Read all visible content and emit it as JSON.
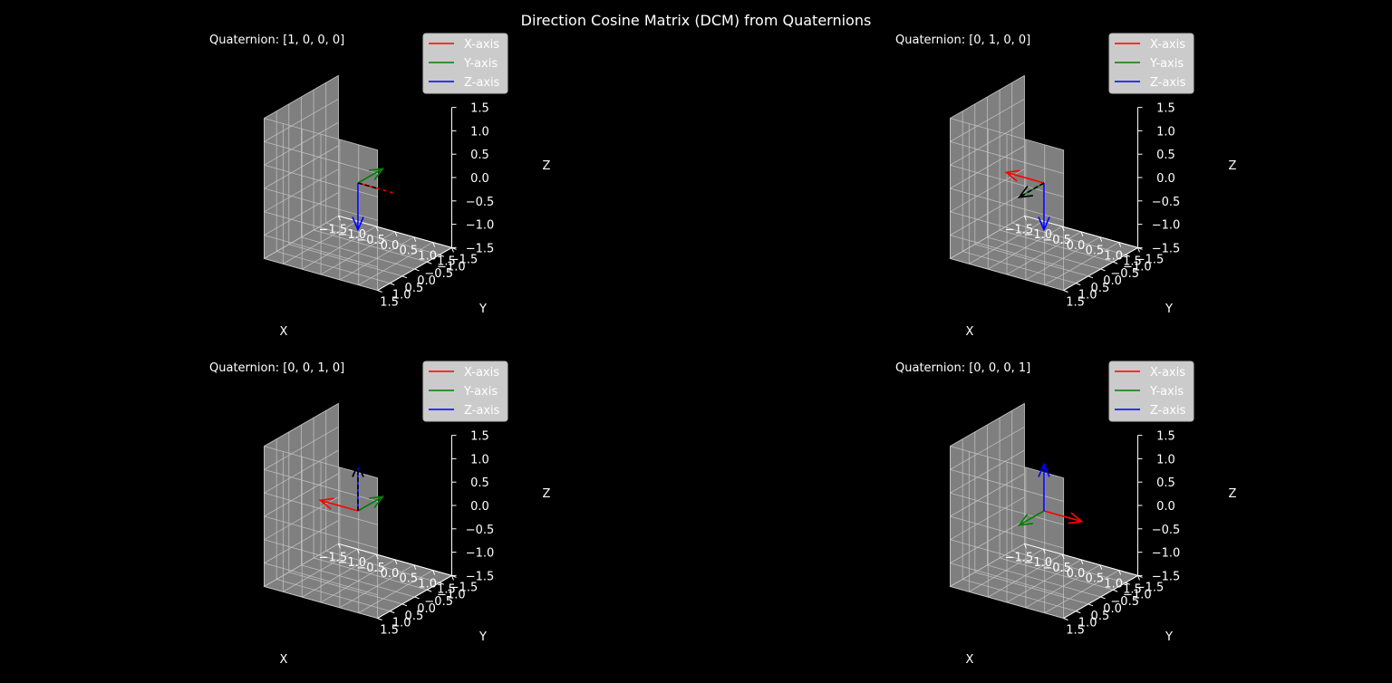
{
  "figure": {
    "title": "Direction Cosine Matrix (DCM) from Quaternions"
  },
  "colors": {
    "background": "#000000",
    "pane": "#7f7f7f",
    "grid": "#c8c8c8",
    "x_axis": "#ff0000",
    "y_axis": "#008000",
    "z_axis": "#0000ff",
    "dashed_overlay": "#000000",
    "legend_bg": "#d6d6d6",
    "text": "#ffffff"
  },
  "chart_data": [
    {
      "type": "3d-quiver",
      "title": "Quaternion: [1, 0, 0, 0]",
      "quaternion": [
        1,
        0,
        0,
        0
      ],
      "xlabel": "X",
      "ylabel": "Y",
      "zlabel": "Z",
      "xlim": [
        -1.5,
        1.5
      ],
      "ylim": [
        -1.5,
        1.5
      ],
      "zlim": [
        -1.5,
        1.5
      ],
      "ticks": [
        "−1.5",
        "−1.0",
        "−0.5",
        "0.0",
        "0.5",
        "1.0",
        "1.5"
      ],
      "grid": true,
      "legend": {
        "placement": "top-right",
        "entries": [
          "X-axis",
          "Y-axis",
          "Z-axis"
        ]
      },
      "series": [
        {
          "name": "X-axis",
          "color": "#ff0000",
          "vector": [
            1,
            0,
            0
          ]
        },
        {
          "name": "Y-axis",
          "color": "#008000",
          "vector": [
            0,
            -1,
            0
          ]
        },
        {
          "name": "Z-axis",
          "color": "#0000ff",
          "vector": [
            0,
            0,
            -1
          ]
        }
      ],
      "dashed_overlay": [
        1,
        0,
        0
      ]
    },
    {
      "type": "3d-quiver",
      "title": "Quaternion: [0, 1, 0, 0]",
      "quaternion": [
        0,
        1,
        0,
        0
      ],
      "xlabel": "X",
      "ylabel": "Y",
      "zlabel": "Z",
      "xlim": [
        -1.5,
        1.5
      ],
      "ylim": [
        -1.5,
        1.5
      ],
      "zlim": [
        -1.5,
        1.5
      ],
      "ticks": [
        "−1.5",
        "−1.0",
        "−0.5",
        "0.0",
        "0.5",
        "1.0",
        "1.5"
      ],
      "grid": true,
      "legend": {
        "placement": "top-right",
        "entries": [
          "X-axis",
          "Y-axis",
          "Z-axis"
        ]
      },
      "series": [
        {
          "name": "X-axis",
          "color": "#ff0000",
          "vector": [
            -1,
            0,
            0
          ]
        },
        {
          "name": "Y-axis",
          "color": "#008000",
          "vector": [
            0,
            1,
            0
          ]
        },
        {
          "name": "Z-axis",
          "color": "#0000ff",
          "vector": [
            0,
            0,
            -1
          ]
        }
      ],
      "dashed_overlay": [
        0,
        1,
        0
      ]
    },
    {
      "type": "3d-quiver",
      "title": "Quaternion: [0, 0, 1, 0]",
      "quaternion": [
        0,
        0,
        1,
        0
      ],
      "xlabel": "X",
      "ylabel": "Y",
      "zlabel": "Z",
      "xlim": [
        -1.5,
        1.5
      ],
      "ylim": [
        -1.5,
        1.5
      ],
      "zlim": [
        -1.5,
        1.5
      ],
      "ticks": [
        "−1.5",
        "−1.0",
        "−0.5",
        "0.0",
        "0.5",
        "1.0",
        "1.5"
      ],
      "grid": true,
      "legend": {
        "placement": "top-right",
        "entries": [
          "X-axis",
          "Y-axis",
          "Z-axis"
        ]
      },
      "series": [
        {
          "name": "X-axis",
          "color": "#ff0000",
          "vector": [
            -1,
            0,
            0
          ]
        },
        {
          "name": "Y-axis",
          "color": "#008000",
          "vector": [
            0,
            -1,
            0
          ]
        },
        {
          "name": "Z-axis",
          "color": "#0000ff",
          "vector": [
            0,
            0,
            1
          ]
        }
      ],
      "dashed_overlay": [
        0,
        0,
        1
      ]
    },
    {
      "type": "3d-quiver",
      "title": "Quaternion: [0, 0, 0, 1]",
      "quaternion": [
        0,
        0,
        0,
        1
      ],
      "xlabel": "X",
      "ylabel": "Y",
      "zlabel": "Z",
      "xlim": [
        -1.5,
        1.5
      ],
      "ylim": [
        -1.5,
        1.5
      ],
      "zlim": [
        -1.5,
        1.5
      ],
      "ticks": [
        "−1.5",
        "−1.0",
        "−0.5",
        "0.0",
        "0.5",
        "1.0",
        "1.5"
      ],
      "grid": true,
      "legend": {
        "placement": "top-right",
        "entries": [
          "X-axis",
          "Y-axis",
          "Z-axis"
        ]
      },
      "series": [
        {
          "name": "X-axis",
          "color": "#ff0000",
          "vector": [
            1,
            0,
            0
          ]
        },
        {
          "name": "Y-axis",
          "color": "#008000",
          "vector": [
            0,
            1,
            0
          ]
        },
        {
          "name": "Z-axis",
          "color": "#0000ff",
          "vector": [
            0,
            0,
            1
          ]
        }
      ],
      "dashed_overlay": null
    }
  ]
}
